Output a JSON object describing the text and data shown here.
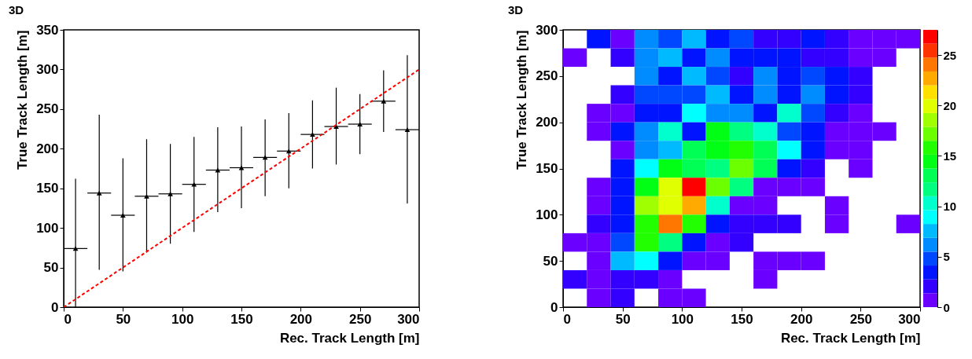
{
  "chart_data": [
    {
      "type": "scatter",
      "annotations": [
        "3D"
      ],
      "xlabel": "Rec. Track Length [m]",
      "ylabel": "True Track Length [m]",
      "x": [
        10,
        30,
        50,
        70,
        90,
        110,
        130,
        150,
        170,
        190,
        210,
        230,
        250,
        270,
        290
      ],
      "series": [
        {
          "color": "#000000",
          "marker": "triangle",
          "values": [
            74,
            144,
            116,
            140,
            143,
            155,
            173,
            176,
            189,
            197,
            218,
            228,
            231,
            260,
            224
          ],
          "errors": [
            [
              0,
              162
            ],
            [
              47,
              243
            ],
            [
              45,
              188
            ],
            [
              69,
              212
            ],
            [
              80,
              206
            ],
            [
              95,
              215
            ],
            [
              120,
              227
            ],
            [
              125,
              228
            ],
            [
              140,
              237
            ],
            [
              150,
              245
            ],
            [
              175,
              261
            ],
            [
              180,
              277
            ],
            [
              193,
              269
            ],
            [
              221,
              299
            ],
            [
              131,
              318
            ]
          ],
          "xerrors": [
            10,
            10,
            10,
            10,
            10,
            10,
            10,
            10,
            10,
            10,
            10,
            10,
            10,
            10,
            10
          ]
        },
        {
          "type": "line",
          "color": "#ff0000",
          "line_style": "dashed",
          "marker": "none",
          "x": [
            0,
            300
          ],
          "values": [
            0,
            300
          ]
        }
      ],
      "xlim": [
        0,
        300
      ],
      "ylim": [
        0,
        350
      ],
      "xticks": [
        0,
        50,
        100,
        150,
        200,
        250,
        300
      ],
      "yticks": [
        0,
        50,
        100,
        150,
        200,
        250,
        300,
        350
      ],
      "grid": false
    },
    {
      "type": "heatmap",
      "annotations": [
        "3D"
      ],
      "xlabel": "Rec. Track Length [m]",
      "ylabel": "True Track Length [m]",
      "x": [
        10,
        30,
        50,
        70,
        90,
        110,
        130,
        150,
        170,
        190,
        210,
        230,
        250,
        270,
        290
      ],
      "y": [
        290,
        270,
        250,
        230,
        210,
        190,
        170,
        150,
        130,
        110,
        90,
        70,
        50,
        30,
        10
      ],
      "cells": [
        [
          null,
          3,
          1,
          6,
          5,
          7,
          3,
          5,
          2,
          2,
          3,
          2,
          1,
          1,
          1
        ],
        [
          1,
          null,
          2,
          6,
          7,
          3,
          6,
          3,
          3,
          3,
          2,
          2,
          1,
          1,
          null
        ],
        [
          null,
          null,
          null,
          6,
          3,
          7,
          5,
          2,
          6,
          3,
          5,
          3,
          2,
          null,
          null
        ],
        [
          null,
          null,
          2,
          5,
          5,
          5,
          7,
          3,
          6,
          3,
          6,
          3,
          2,
          null,
          null
        ],
        [
          null,
          1,
          1,
          3,
          3,
          9,
          6,
          6,
          3,
          10,
          5,
          2,
          1,
          null,
          null
        ],
        [
          null,
          1,
          3,
          6,
          10,
          3,
          14,
          12,
          10,
          5,
          3,
          1,
          1,
          1,
          null
        ],
        [
          null,
          null,
          1,
          6,
          7,
          13,
          14,
          16,
          13,
          9,
          3,
          1,
          1,
          null,
          null
        ],
        [
          null,
          null,
          3,
          9,
          14,
          13,
          12,
          17,
          13,
          3,
          2,
          null,
          1,
          null,
          null
        ],
        [
          null,
          1,
          3,
          14,
          20,
          27,
          17,
          12,
          1,
          1,
          1,
          null,
          null,
          null,
          null
        ],
        [
          null,
          1,
          3,
          19,
          20,
          23,
          10,
          1,
          1,
          null,
          null,
          1,
          null,
          null,
          null
        ],
        [
          null,
          2,
          3,
          16,
          24,
          16,
          3,
          2,
          2,
          2,
          null,
          1,
          null,
          null,
          1
        ],
        [
          1,
          1,
          5,
          16,
          12,
          3,
          1,
          2,
          null,
          null,
          null,
          null,
          null,
          null,
          null
        ],
        [
          null,
          1,
          7,
          9,
          3,
          1,
          1,
          null,
          1,
          1,
          1,
          null,
          null,
          null,
          null
        ],
        [
          2,
          1,
          2,
          2,
          1,
          null,
          null,
          null,
          1,
          null,
          null,
          null,
          null,
          null,
          null
        ],
        [
          null,
          1,
          2,
          null,
          1,
          1,
          null,
          null,
          null,
          null,
          null,
          null,
          null,
          null,
          null
        ]
      ],
      "xlim": [
        0,
        300
      ],
      "ylim": [
        0,
        300
      ],
      "xticks": [
        0,
        50,
        100,
        150,
        200,
        250,
        300
      ],
      "yticks": [
        0,
        50,
        100,
        150,
        200,
        250,
        300
      ],
      "clim": [
        0,
        27.5
      ],
      "cticks": [
        0,
        5,
        10,
        15,
        20,
        25
      ]
    }
  ]
}
